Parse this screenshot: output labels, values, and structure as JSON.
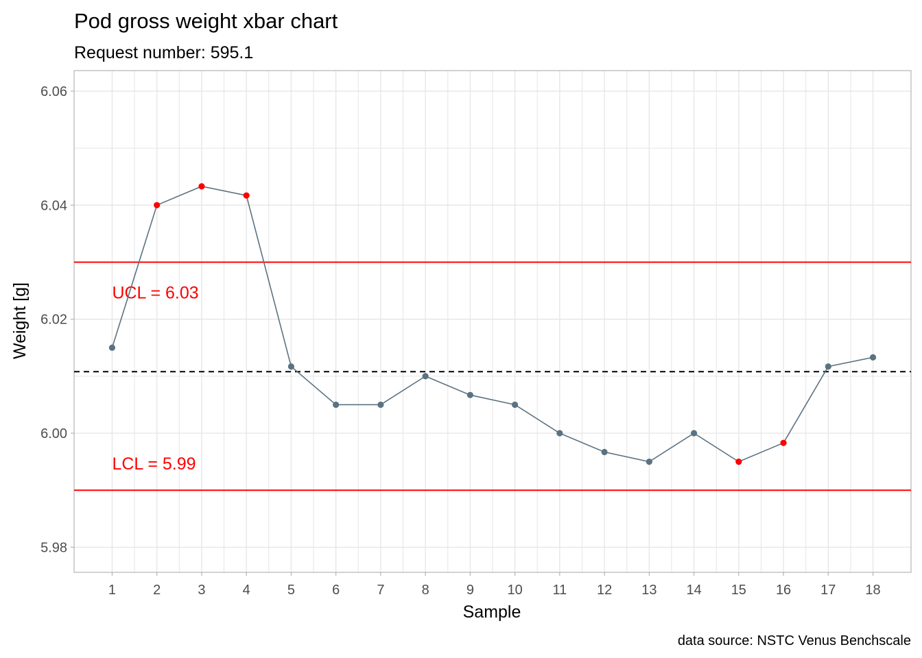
{
  "chart_data": {
    "type": "line",
    "title": "Pod gross weight xbar chart",
    "subtitle": "Request number: 595.1",
    "xlabel": "Sample",
    "ylabel": "Weight [g]",
    "caption": "data source: NSTC Venus Benchscale",
    "x": [
      1,
      2,
      3,
      4,
      5,
      6,
      7,
      8,
      9,
      10,
      11,
      12,
      13,
      14,
      15,
      16,
      17,
      18
    ],
    "x_tick_labels": [
      "1",
      "2",
      "3",
      "4",
      "5",
      "6",
      "7",
      "8",
      "9",
      "10",
      "11",
      "12",
      "13",
      "14",
      "15",
      "16",
      "17",
      "18"
    ],
    "xlim": [
      0.15,
      18.85
    ],
    "ylim": [
      5.9756,
      6.0636
    ],
    "y_ticks": [
      5.98,
      6.0,
      6.02,
      6.04,
      6.06
    ],
    "y_tick_labels": [
      "5.98",
      "6.00",
      "6.02",
      "6.04",
      "6.06"
    ],
    "series": [
      {
        "name": "xbar",
        "values": [
          6.015,
          6.04,
          6.0433,
          6.0417,
          6.0117,
          6.005,
          6.005,
          6.01,
          6.0067,
          6.005,
          6.0,
          5.9967,
          5.995,
          6.0,
          5.995,
          5.9983,
          6.0117,
          6.0133
        ],
        "out_of_control": [
          false,
          true,
          true,
          true,
          false,
          false,
          false,
          false,
          false,
          false,
          false,
          false,
          false,
          false,
          true,
          true,
          false,
          false
        ]
      }
    ],
    "center_line": 6.0108,
    "ucl": 6.03,
    "lcl": 5.99,
    "ucl_label": "UCL = 6.03",
    "lcl_label": "LCL = 5.99",
    "grid": true,
    "colors": {
      "line": "#5b7281",
      "point": "#5b7281",
      "flagged_point": "#ff0000",
      "limit": "#ff0000",
      "center": "#000000",
      "grid": "#e5e5e5",
      "border": "#b3b3b3"
    }
  }
}
